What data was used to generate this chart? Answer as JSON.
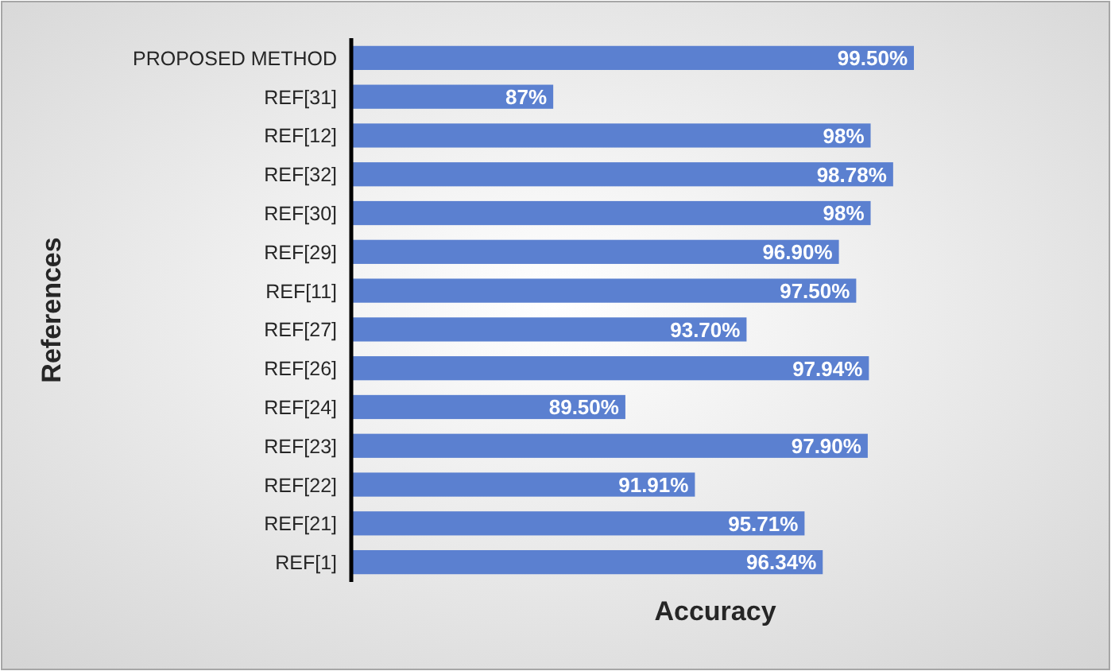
{
  "chart_data": {
    "type": "bar",
    "orientation": "horizontal",
    "xlabel": "Accuracy",
    "ylabel": "References",
    "categories": [
      "PROPOSED METHOD",
      "REF[31]",
      "REF[12]",
      "REF[32]",
      "REF[30]",
      "REF[29]",
      "REF[11]",
      "REF[27]",
      "REF[26]",
      "REF[24]",
      "REF[23]",
      "REF[22]",
      "REF[21]",
      "REF[1]"
    ],
    "values": [
      99.5,
      87,
      98,
      98.78,
      98,
      96.9,
      97.5,
      93.7,
      97.94,
      89.5,
      97.9,
      91.91,
      95.71,
      96.34
    ],
    "value_labels": [
      "99.50%",
      "87%",
      "98%",
      "98.78%",
      "98%",
      "96.90%",
      "97.50%",
      "93.70%",
      "97.94%",
      "89.50%",
      "97.90%",
      "91.91%",
      "95.71%",
      "96.34%"
    ],
    "color": "#5b80d0",
    "xlim": [
      80,
      99.5
    ],
    "tick_labels": "y"
  }
}
